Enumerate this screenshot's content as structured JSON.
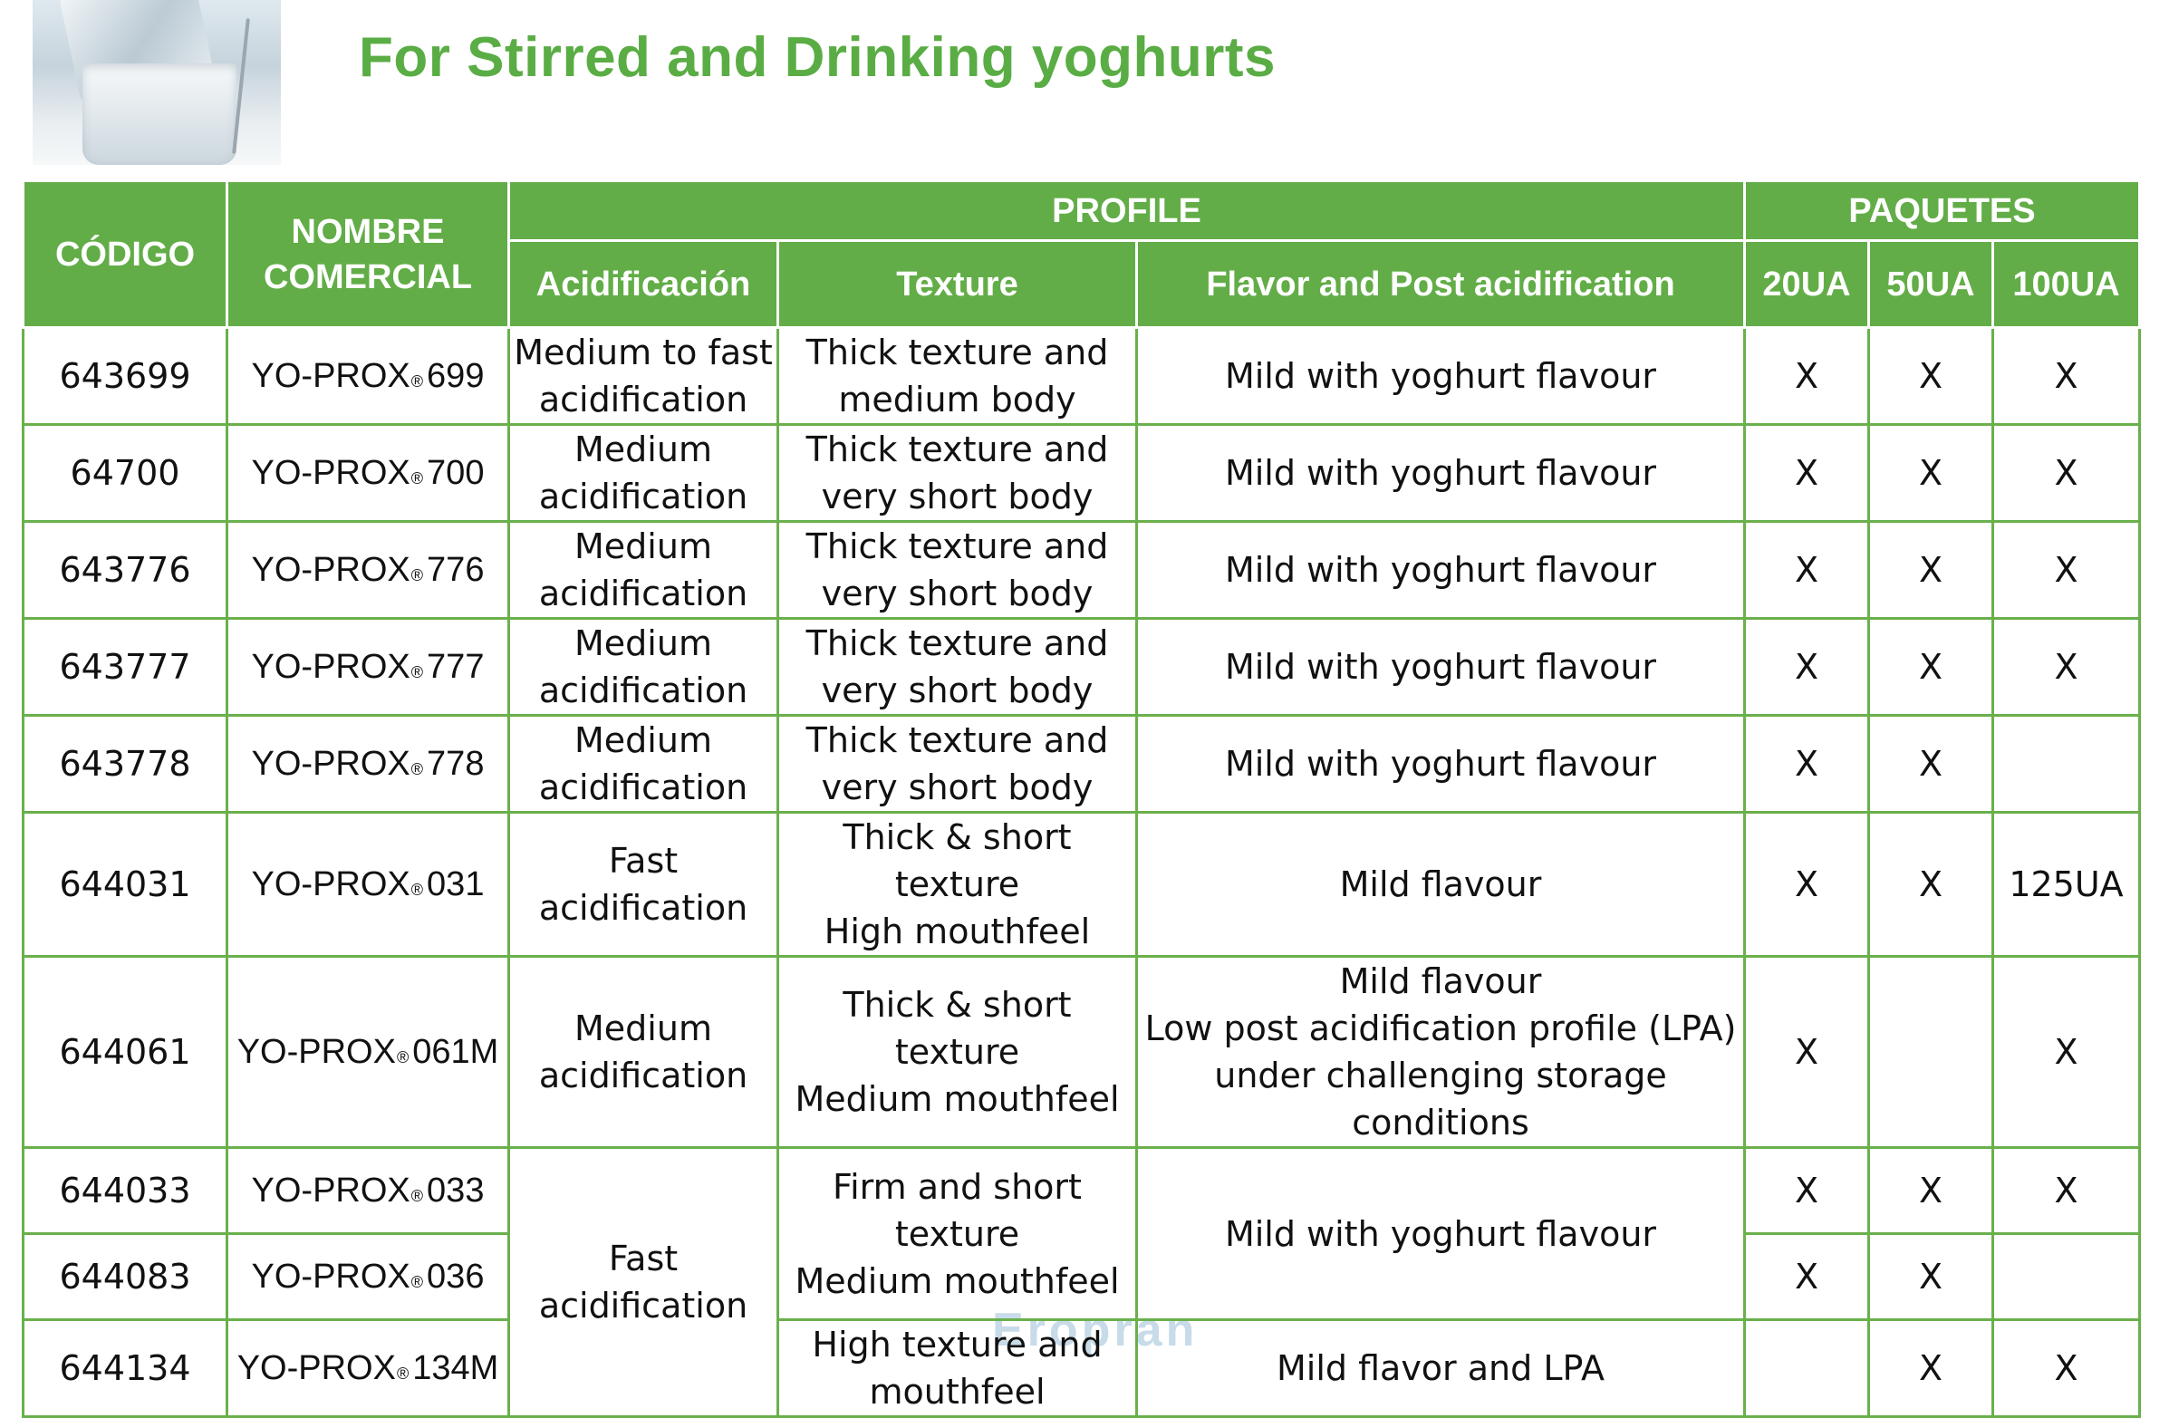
{
  "title": "For Stirred and Drinking yoghurts",
  "headers": {
    "codigo": "CÓDIGO",
    "nombre_line1": "NOMBRE",
    "nombre_line2": "COMERCIAL",
    "profile": "PROFILE",
    "paquetes": "PAQUETES",
    "acidificacion": "Acidificación",
    "texture": "Texture",
    "flavor": "Flavor and Post acidification",
    "p20": "20UA",
    "p50": "50UA",
    "p100": "100UA"
  },
  "registered_mark": "®",
  "rows": [
    {
      "code": "643699",
      "brand": "YO-PROX",
      "num": "699",
      "acid": [
        "Medium to fast",
        "acidification"
      ],
      "texture": [
        "Thick texture  and",
        "medium body"
      ],
      "flavor": [
        "Mild with yoghurt flavour"
      ],
      "p20": "X",
      "p50": "X",
      "p100": "X"
    },
    {
      "code": "64700",
      "brand": "YO-PROX",
      "num": "700",
      "acid": [
        "Medium",
        "acidification"
      ],
      "texture": [
        "Thick texture  and",
        "very short body"
      ],
      "flavor": [
        "Mild with yoghurt flavour"
      ],
      "p20": "X",
      "p50": "X",
      "p100": "X"
    },
    {
      "code": "643776",
      "brand": "YO-PROX",
      "num": "776",
      "acid": [
        "Medium",
        "acidification"
      ],
      "texture": [
        "Thick texture  and",
        "very short body"
      ],
      "flavor": [
        "Mild with yoghurt flavour"
      ],
      "p20": "X",
      "p50": "X",
      "p100": "X"
    },
    {
      "code": "643777",
      "brand": "YO-PROX",
      "num": "777",
      "acid": [
        "Medium",
        "acidification"
      ],
      "texture": [
        "Thick texture  and",
        "very short body"
      ],
      "flavor": [
        "Mild with yoghurt flavour"
      ],
      "p20": "X",
      "p50": "X",
      "p100": "X"
    },
    {
      "code": "643778",
      "brand": "YO-PROX",
      "num": "778",
      "acid": [
        "Medium",
        "acidification"
      ],
      "texture": [
        "Thick texture  and",
        "very short body"
      ],
      "flavor": [
        "Mild with yoghurt flavour"
      ],
      "p20": "X",
      "p50": "X",
      "p100": ""
    },
    {
      "code": "644031",
      "brand": "YO-PROX",
      "num": "031",
      "acid": [
        "Fast",
        "acidification"
      ],
      "texture": [
        "Thick & short texture",
        "High mouthfeel"
      ],
      "flavor": [
        "Mild flavour"
      ],
      "p20": "X",
      "p50": "X",
      "p100": "125UA"
    },
    {
      "code": "644061",
      "brand": "YO-PROX",
      "num": "061M",
      "acid": [
        "Medium",
        "acidification"
      ],
      "texture": [
        "Thick & short texture",
        "Medium mouthfeel"
      ],
      "flavor": [
        "Mild flavour",
        "Low post acidification profile (LPA)",
        "under challenging storage conditions"
      ],
      "p20": "X",
      "p50": "",
      "p100": "X"
    },
    {
      "code": "644033",
      "brand": "YO-PROX",
      "num": "033",
      "p20": "X",
      "p50": "X",
      "p100": "X"
    },
    {
      "code": "644083",
      "brand": "YO-PROX",
      "num": "036",
      "p20": "X",
      "p50": "X",
      "p100": ""
    },
    {
      "code": "644134",
      "brand": "YO-PROX",
      "num": "134M",
      "texture": [
        "High texture and",
        "mouthfeel"
      ],
      "flavor": [
        "Mild flavor and LPA"
      ],
      "p20": "",
      "p50": "X",
      "p100": "X"
    }
  ],
  "merged": {
    "acid_last": [
      "Fast",
      "acidification"
    ],
    "texture_033_036": [
      "Firm and short texture",
      "Medium mouthfeel"
    ],
    "flavor_033_036": "Mild with yoghurt flavour"
  },
  "watermark": "Eropran",
  "colors": {
    "header_green": "#62ad47",
    "border_green": "#6ab04c",
    "product_green": "#5aad44",
    "alert_red": "#e2231a"
  }
}
